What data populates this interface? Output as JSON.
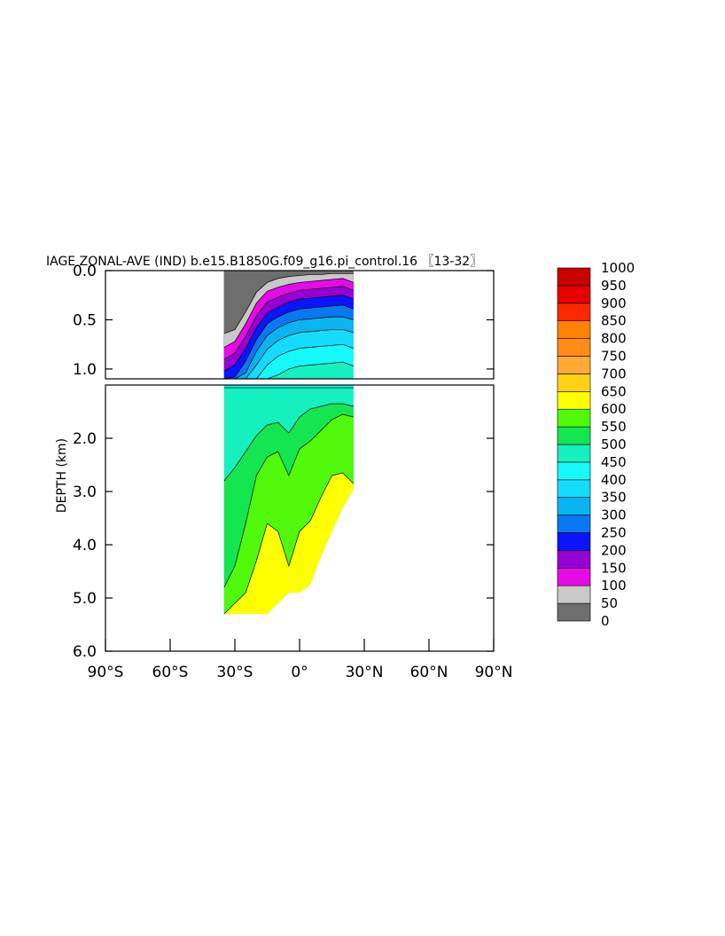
{
  "chart_data": {
    "type": "heatmap",
    "subtype": "filled-contour",
    "title": "IAGE ZONAL-AVE (IND) b.e15.B1850G.f09_g16.pi_control.16 〖13-32〗",
    "xlabel": "",
    "ylabel": "DEPTH (km)",
    "x_range_deg": [
      -90,
      90
    ],
    "x_ticks": [
      {
        "value": -90,
        "label": "90°S"
      },
      {
        "value": -60,
        "label": "60°S"
      },
      {
        "value": -30,
        "label": "30°S"
      },
      {
        "value": 0,
        "label": "0°"
      },
      {
        "value": 30,
        "label": "30°N"
      },
      {
        "value": 60,
        "label": "60°N"
      },
      {
        "value": 90,
        "label": "90°N"
      }
    ],
    "upper_panel": {
      "depth_range_km": [
        0,
        1.1
      ],
      "y_ticks": [
        {
          "value": 0.0,
          "label": "0.0"
        },
        {
          "value": 0.5,
          "label": "0.5"
        },
        {
          "value": 1.0,
          "label": "1.0"
        }
      ]
    },
    "lower_panel": {
      "depth_range_km": [
        1.0,
        6.0
      ],
      "y_ticks": [
        {
          "value": 2.0,
          "label": "2.0"
        },
        {
          "value": 3.0,
          "label": "3.0"
        },
        {
          "value": 4.0,
          "label": "4.0"
        },
        {
          "value": 5.0,
          "label": "5.0"
        },
        {
          "value": 6.0,
          "label": "6.0"
        }
      ]
    },
    "data_extent_lat": [
      -35,
      25
    ],
    "contour_levels": [
      0,
      50,
      100,
      150,
      200,
      250,
      300,
      350,
      400,
      450,
      500,
      550,
      600,
      650,
      700,
      750,
      800,
      850,
      900,
      950,
      1000
    ],
    "colorbar": {
      "colors": [
        "#6e6e6e",
        "#c8c8c8",
        "#e60ae6",
        "#9600d2",
        "#0a14ff",
        "#0a78f0",
        "#0ab4f0",
        "#14dcff",
        "#14fafa",
        "#14f0be",
        "#14e650",
        "#50fa0a",
        "#ffff00",
        "#ffd214",
        "#ffaa32",
        "#ff8c14",
        "#ff8200",
        "#ff2800",
        "#e60000",
        "#c80000"
      ],
      "labels": [
        "0",
        "50",
        "100",
        "150",
        "200",
        "250",
        "300",
        "350",
        "400",
        "450",
        "500",
        "550",
        "600",
        "650",
        "700",
        "750",
        "800",
        "850",
        "900",
        "950",
        "1000"
      ]
    },
    "upper_field_depth_km": {
      "lat": [
        -35,
        -30,
        -25,
        -20,
        -15,
        -10,
        -5,
        0,
        5,
        10,
        15,
        20,
        25
      ],
      "contours": [
        {
          "level": 50,
          "depth": [
            0.64,
            0.6,
            0.42,
            0.22,
            0.12,
            0.08,
            0.06,
            0.05,
            0.04,
            0.04,
            0.03,
            0.03,
            0.03
          ]
        },
        {
          "level": 100,
          "depth": [
            0.78,
            0.72,
            0.54,
            0.33,
            0.21,
            0.17,
            0.14,
            0.12,
            0.11,
            0.1,
            0.09,
            0.08,
            0.12
          ]
        },
        {
          "level": 150,
          "depth": [
            0.9,
            0.84,
            0.67,
            0.46,
            0.32,
            0.27,
            0.23,
            0.2,
            0.19,
            0.18,
            0.17,
            0.16,
            0.2
          ]
        },
        {
          "level": 200,
          "depth": [
            1.02,
            0.96,
            0.79,
            0.58,
            0.43,
            0.37,
            0.32,
            0.29,
            0.28,
            0.27,
            0.26,
            0.25,
            0.29
          ]
        },
        {
          "level": 250,
          "depth": [
            1.14,
            1.08,
            0.92,
            0.7,
            0.54,
            0.47,
            0.42,
            0.39,
            0.38,
            0.37,
            0.36,
            0.35,
            0.39
          ]
        },
        {
          "level": 300,
          "depth": [
            1.26,
            1.2,
            1.04,
            0.82,
            0.66,
            0.58,
            0.53,
            0.5,
            0.49,
            0.48,
            0.47,
            0.47,
            0.5
          ]
        },
        {
          "level": 350,
          "depth": [
            1.4,
            1.34,
            1.18,
            0.96,
            0.8,
            0.71,
            0.66,
            0.63,
            0.62,
            0.61,
            0.6,
            0.6,
            0.63
          ]
        },
        {
          "level": 400,
          "depth": [
            1.55,
            1.49,
            1.33,
            1.12,
            0.96,
            0.87,
            0.82,
            0.79,
            0.78,
            0.77,
            0.76,
            0.75,
            0.79
          ]
        },
        {
          "level": 450,
          "depth": [
            1.75,
            1.68,
            1.52,
            1.32,
            1.16,
            1.06,
            1.0,
            0.97,
            0.96,
            0.95,
            0.94,
            0.93,
            0.97
          ]
        }
      ]
    },
    "lower_field_depth_km": {
      "seafloor": {
        "lat": [
          -35,
          -30,
          -25,
          -20,
          -15,
          -10,
          -5,
          0,
          5,
          10,
          15,
          20,
          25
        ],
        "depth": [
          5.3,
          5.3,
          5.3,
          5.3,
          5.3,
          5.1,
          4.9,
          4.9,
          4.75,
          4.2,
          3.75,
          3.3,
          2.95
        ]
      },
      "contours": [
        {
          "level": 450,
          "depth": [
            1.05,
            1.05,
            1.05,
            1.05,
            1.05,
            1.05,
            1.05,
            1.05,
            1.05,
            1.05,
            1.05,
            1.05,
            1.05
          ]
        },
        {
          "level": 500,
          "depth": [
            2.8,
            2.55,
            2.25,
            1.95,
            1.75,
            1.7,
            1.9,
            1.6,
            1.45,
            1.4,
            1.35,
            1.35,
            1.4
          ]
        },
        {
          "level": 550,
          "depth": [
            4.8,
            4.4,
            3.6,
            2.7,
            2.35,
            2.25,
            2.7,
            2.2,
            2.05,
            1.85,
            1.65,
            1.55,
            1.6
          ]
        },
        {
          "level": 600,
          "depth": [
            5.3,
            5.1,
            4.9,
            4.3,
            3.6,
            3.75,
            4.4,
            3.75,
            3.55,
            3.1,
            2.7,
            2.65,
            2.85
          ]
        }
      ]
    }
  }
}
